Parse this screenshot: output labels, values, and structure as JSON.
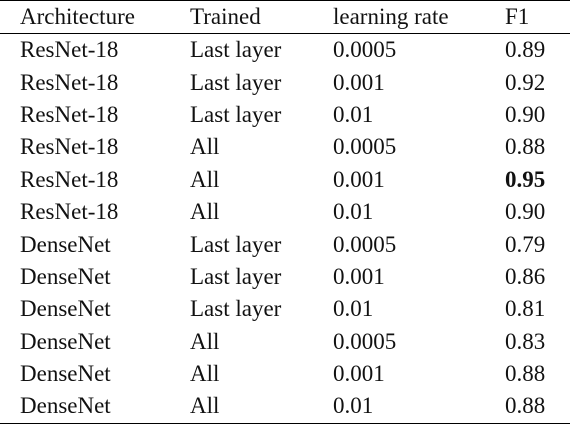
{
  "table": {
    "header": [
      "Architecture",
      "Trained",
      "learning rate",
      "F1"
    ],
    "rows": [
      [
        "ResNet-18",
        "Last layer",
        "0.0005",
        "0.89"
      ],
      [
        "ResNet-18",
        "Last layer",
        "0.001",
        "0.92"
      ],
      [
        "ResNet-18",
        "Last layer",
        "0.01",
        "0.90"
      ],
      [
        "ResNet-18",
        "All",
        "0.0005",
        "0.88"
      ],
      [
        "ResNet-18",
        "All",
        "0.001",
        "0.95"
      ],
      [
        "ResNet-18",
        "All",
        "0.01",
        "0.90"
      ],
      [
        "DenseNet",
        "Last layer",
        "0.0005",
        "0.79"
      ],
      [
        "DenseNet",
        "Last layer",
        "0.001",
        "0.86"
      ],
      [
        "DenseNet",
        "Last layer",
        "0.01",
        "0.81"
      ],
      [
        "DenseNet",
        "All",
        "0.0005",
        "0.83"
      ],
      [
        "DenseNet",
        "All",
        "0.001",
        "0.88"
      ],
      [
        "DenseNet",
        "All",
        "0.01",
        "0.88"
      ]
    ]
  }
}
